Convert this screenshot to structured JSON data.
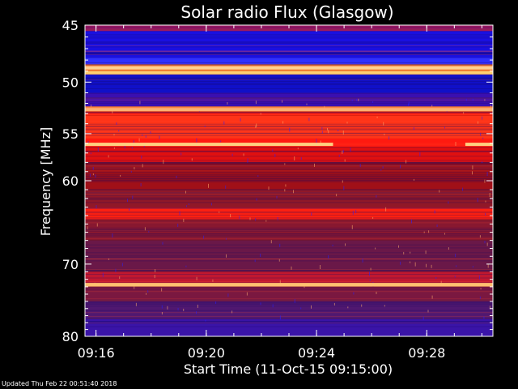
{
  "footer": {
    "updated": "Updated Thu Feb 22 00:51:40 2018"
  },
  "chart_data": {
    "type": "heatmap",
    "title": "Solar radio Flux (Glasgow)",
    "xlabel": "Start Time (11-Oct-15 09:15:00)",
    "ylabel": "Frequency [MHz]",
    "ylim": [
      45,
      80
    ],
    "y_scale": "log",
    "xlim_minutes": [
      9.6,
      24.4
    ],
    "x_ticks": [
      {
        "label": "09:16",
        "minutes": 16
      },
      {
        "label": "09:20",
        "minutes": 20
      },
      {
        "label": "09:24",
        "minutes": 24
      },
      {
        "label": "09:28",
        "minutes": 28
      }
    ],
    "y_ticks": [
      45,
      50,
      55,
      60,
      70,
      80
    ],
    "grid": false,
    "colors": {
      "background": "#000000",
      "low": "#1a10d8",
      "mid": "#9a1010",
      "high": "#ff3a10",
      "peak": "#ffd070"
    },
    "bands": [
      {
        "from": 45.0,
        "to": 45.5,
        "color": "#9a1860"
      },
      {
        "from": 45.5,
        "to": 47.8,
        "color": "#1a10e0"
      },
      {
        "from": 47.8,
        "to": 48.4,
        "color": "#3030ff"
      },
      {
        "from": 48.4,
        "to": 49.0,
        "color": "#ff8030"
      },
      {
        "from": 49.0,
        "to": 49.3,
        "color": "#ffd070"
      },
      {
        "from": 49.3,
        "to": 51.0,
        "color": "#1010c8"
      },
      {
        "from": 51.0,
        "to": 52.3,
        "color": "#3a0fb0"
      },
      {
        "from": 52.3,
        "to": 52.8,
        "color": "#ff8040"
      },
      {
        "from": 52.8,
        "to": 53.2,
        "color": "#ff2010"
      },
      {
        "from": 53.2,
        "to": 55.5,
        "color": "#ff3418"
      },
      {
        "from": 55.5,
        "to": 56.4,
        "color": "#ff1a10"
      },
      {
        "from": 56.4,
        "to": 58.0,
        "color": "#e01010"
      },
      {
        "from": 58.0,
        "to": 61.0,
        "color": "#a01018"
      },
      {
        "from": 61.0,
        "to": 63.0,
        "color": "#901828"
      },
      {
        "from": 63.0,
        "to": 64.5,
        "color": "#ff2010"
      },
      {
        "from": 64.5,
        "to": 67.0,
        "color": "#881830"
      },
      {
        "from": 67.0,
        "to": 71.0,
        "color": "#6a1848"
      },
      {
        "from": 71.0,
        "to": 72.6,
        "color": "#c01830"
      },
      {
        "from": 72.6,
        "to": 73.0,
        "color": "#ffb060"
      },
      {
        "from": 73.0,
        "to": 75.0,
        "color": "#7a1840"
      },
      {
        "from": 75.0,
        "to": 77.5,
        "color": "#501870"
      },
      {
        "from": 77.5,
        "to": 80.0,
        "color": "#3a14a8"
      }
    ],
    "bright_lines": [
      {
        "freq": 48.7,
        "from": 9.6,
        "to": 24.4,
        "color": "#ffd090"
      },
      {
        "freq": 52.6,
        "from": 9.6,
        "to": 24.4,
        "color": "#ffb070"
      },
      {
        "freq": 56.1,
        "from": 9.6,
        "to": 18.6,
        "color": "#ffd080"
      },
      {
        "freq": 56.1,
        "from": 23.4,
        "to": 24.4,
        "color": "#ffd080"
      },
      {
        "freq": 72.7,
        "from": 9.6,
        "to": 24.4,
        "color": "#ffc070"
      }
    ]
  }
}
